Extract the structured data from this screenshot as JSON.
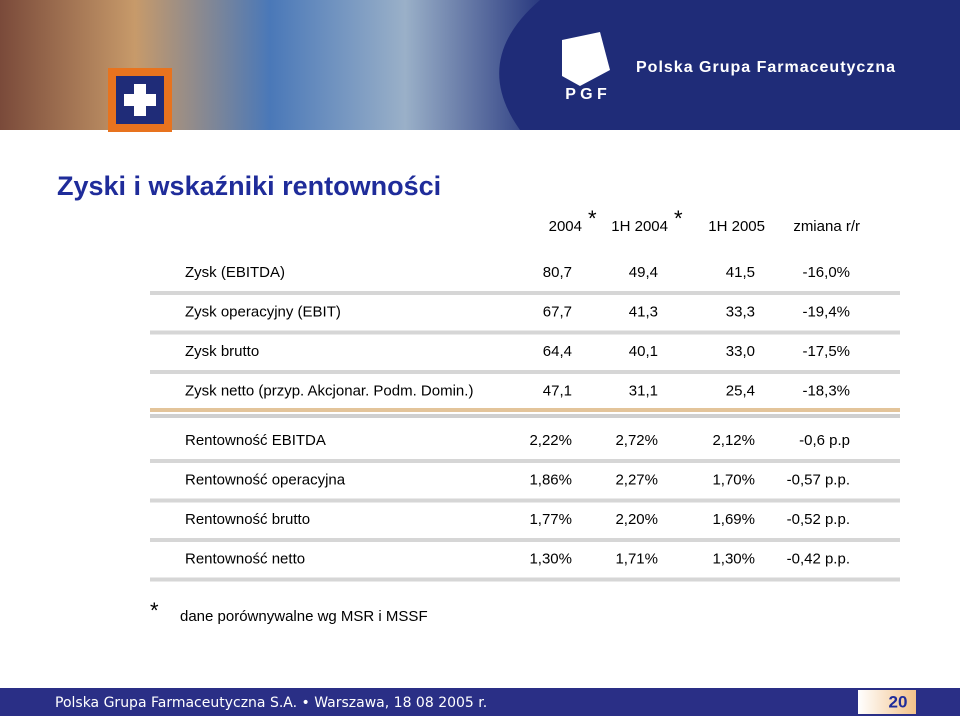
{
  "header": {
    "company": "Polska Grupa Farmaceutyczna",
    "logo": "P G F"
  },
  "title": "Zyski i wskaźniki rentowności",
  "table": {
    "columns": [
      "2004",
      "1H 2004",
      "1H 2005",
      "zmiana r/r"
    ],
    "column_notes": [
      "*",
      "*"
    ],
    "groups": [
      [
        [
          "Zysk (EBITDA)",
          "80,7",
          "49,4",
          "41,5",
          "-16,0%"
        ],
        [
          "Zysk operacyjny (EBIT)",
          "67,7",
          "41,3",
          "33,3",
          "-19,4%"
        ],
        [
          "Zysk brutto",
          "64,4",
          "40,1",
          "33,0",
          "-17,5%"
        ],
        [
          "Zysk netto (przyp. Akcjonar. Podm. Domin.)",
          "47,1",
          "31,1",
          "25,4",
          "-18,3%"
        ]
      ],
      [
        [
          "Rentowność EBITDA",
          "2,22%",
          "2,72%",
          "2,12%",
          "-0,6 p.p"
        ],
        [
          "Rentowność operacyjna",
          "1,86%",
          "2,27%",
          "1,70%",
          "-0,57 p.p."
        ],
        [
          "Rentowność brutto",
          "1,77%",
          "2,20%",
          "1,69%",
          "-0,52 p.p."
        ],
        [
          "Rentowność netto",
          "1,30%",
          "1,71%",
          "1,30%",
          "-0,42 p.p."
        ]
      ]
    ]
  },
  "footnote": {
    "mark": "*",
    "text": "dane porównywalne wg MSR i MSSF"
  },
  "footer": {
    "text": "Polska Grupa Farmaceutyczna S.A. • Warszawa, 18 08 2005 r.",
    "page": "20"
  }
}
